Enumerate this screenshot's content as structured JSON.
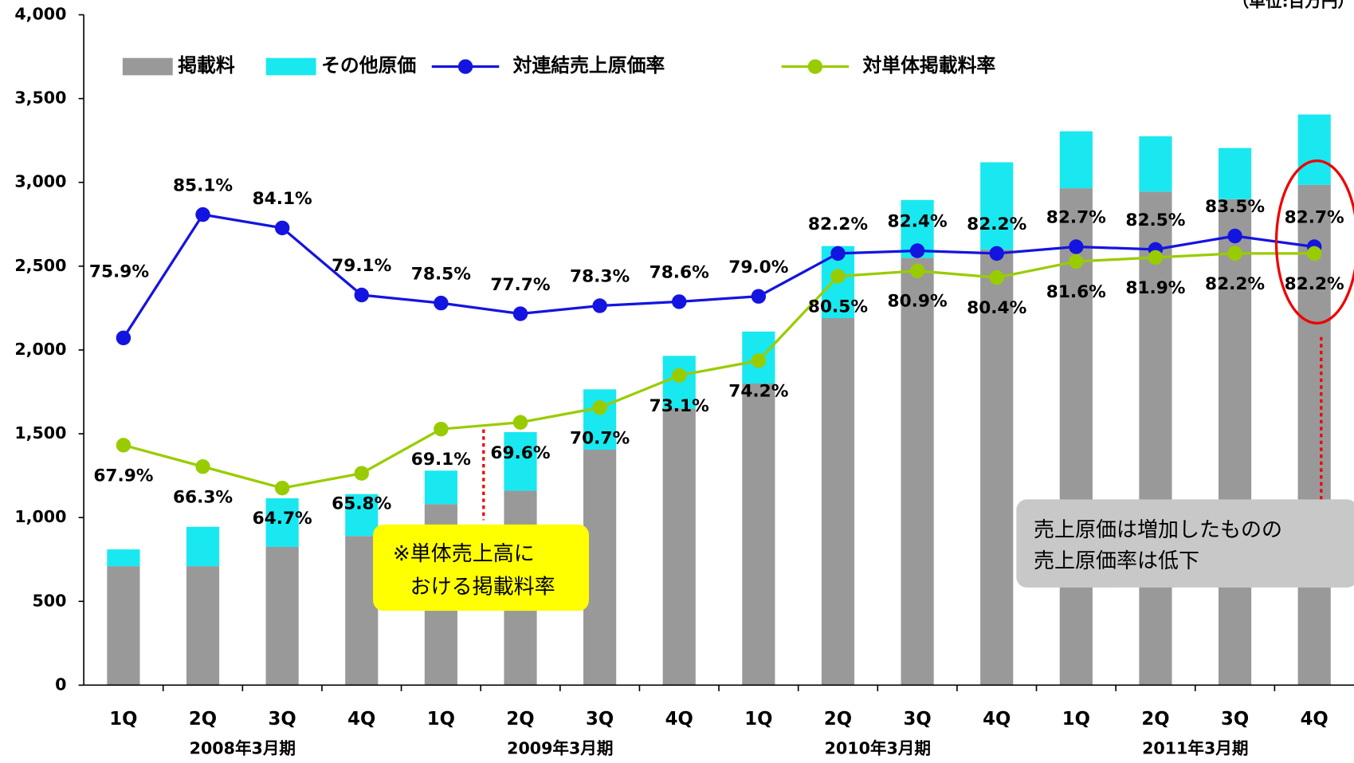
{
  "chart_data": {
    "type": "bar_line",
    "unit_label": "（単位:百万円）",
    "categories": [
      "1Q",
      "2Q",
      "3Q",
      "4Q",
      "1Q",
      "2Q",
      "3Q",
      "4Q",
      "1Q",
      "2Q",
      "3Q",
      "4Q",
      "1Q",
      "2Q",
      "3Q",
      "4Q"
    ],
    "group_labels": [
      "2008年3月期",
      "2009年3月期",
      "2010年3月期",
      "2011年3月期"
    ],
    "ylim": [
      0,
      4000
    ],
    "yticks": [
      0,
      500,
      {
        "value": 1000,
        "label": "1,000"
      },
      {
        "value": 1500,
        "label": "1,500"
      },
      {
        "value": 2000,
        "label": "2,000"
      },
      {
        "value": 2500,
        "label": "2,500"
      },
      {
        "value": 3000,
        "label": "3,000"
      },
      {
        "value": 3500,
        "label": "3,500"
      },
      {
        "value": 4000,
        "label": "4,000"
      }
    ],
    "y2lim": [
      50,
      100
    ],
    "series": [
      {
        "name": "掲載料",
        "color": "#999999",
        "stack": true,
        "values": [
          710,
          710,
          825,
          890,
          1080,
          1160,
          1405,
          1650,
          1800,
          2190,
          2550,
          2600,
          2965,
          2945,
          2900,
          2985
        ]
      },
      {
        "name": "その他原価",
        "color": "#19e8f0",
        "stack": true,
        "values": [
          100,
          235,
          290,
          250,
          200,
          350,
          360,
          315,
          310,
          430,
          345,
          520,
          340,
          330,
          305,
          420
        ]
      },
      {
        "name": "対連結売上原価率",
        "color": "#1414e0",
        "axis": "y2",
        "label_pos": "above",
        "values": [
          75.9,
          85.1,
          84.1,
          79.1,
          78.5,
          77.7,
          78.3,
          78.6,
          79.0,
          82.2,
          82.4,
          82.2,
          82.7,
          82.5,
          83.5,
          82.7
        ],
        "value_labels": [
          "75.9%",
          "85.1%",
          "84.1%",
          "79.1%",
          "78.5%",
          "77.7%",
          "78.3%",
          "78.6%",
          "79.0%",
          "82.2%",
          "82.4%",
          "82.2%",
          "82.7%",
          "82.5%",
          "83.5%",
          "82.7%"
        ]
      },
      {
        "name": "対単体掲載料率",
        "color": "#99cc00",
        "axis": "y2",
        "label_pos": "below",
        "values": [
          67.9,
          66.3,
          64.7,
          65.8,
          69.1,
          69.6,
          70.7,
          73.1,
          74.2,
          80.5,
          80.9,
          80.4,
          81.6,
          81.9,
          82.2,
          82.2
        ],
        "value_labels": [
          "67.9%",
          "66.3%",
          "64.7%",
          "65.8%",
          "69.1%",
          "69.6%",
          "70.7%",
          "73.1%",
          "74.2%",
          "80.5%",
          "80.9%",
          "80.4%",
          "81.6%",
          "81.9%",
          "82.2%",
          "82.2%"
        ]
      }
    ],
    "annotations": [
      {
        "lines": [
          "※単体売上高に",
          "おける掲載料率"
        ]
      },
      {
        "lines": [
          "売上原価は増加したものの",
          "売上原価率は低下"
        ]
      }
    ]
  }
}
